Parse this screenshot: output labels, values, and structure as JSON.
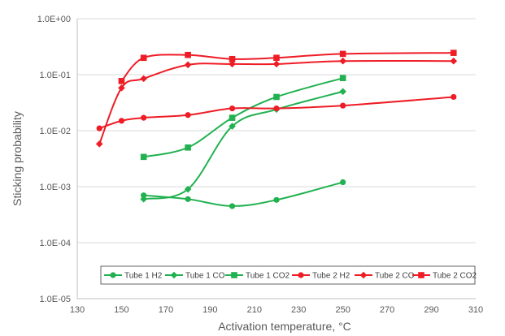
{
  "chart_data": {
    "type": "line",
    "xlabel": "Activation temperature, °C",
    "ylabel": "Sticking probability",
    "x_ticks": [
      "130",
      "150",
      "170",
      "190",
      "210",
      "230",
      "250",
      "270",
      "290",
      "310"
    ],
    "y_ticks": [
      "1.0E-05",
      "1.0E-04",
      "1.0E-03",
      "1.0E-02",
      "1.0E-01",
      "1.0E+00"
    ],
    "xlim": [
      130,
      310
    ],
    "ylim": [
      1e-05,
      1
    ],
    "y_scale": "log",
    "grid": "horizontal major gridlines",
    "legend_position": "bottom-inside",
    "series": [
      {
        "name": "Tube 1 H2",
        "color": "#21b150",
        "marker": "circle",
        "x": [
          160,
          180,
          200,
          220,
          250
        ],
        "y": [
          0.0007,
          0.0006,
          0.00045,
          0.00058,
          0.0012
        ]
      },
      {
        "name": "Tube 1 CO",
        "color": "#21b150",
        "marker": "diamond",
        "x": [
          160,
          180,
          200,
          220,
          250
        ],
        "y": [
          0.0006,
          0.0009,
          0.012,
          0.024,
          0.05
        ]
      },
      {
        "name": "Tube 1 CO2",
        "color": "#21b150",
        "marker": "square",
        "x": [
          160,
          180,
          200,
          220,
          250
        ],
        "y": [
          0.0034,
          0.005,
          0.017,
          0.04,
          0.087
        ]
      },
      {
        "name": "Tube 2 H2",
        "color": "#ee1c25",
        "marker": "circle",
        "x": [
          140,
          150,
          160,
          180,
          200,
          220,
          250,
          300
        ],
        "y": [
          0.011,
          0.015,
          0.017,
          0.019,
          0.025,
          0.025,
          0.028,
          0.04
        ]
      },
      {
        "name": "Tube 2 CO",
        "color": "#ee1c25",
        "marker": "diamond",
        "x": [
          140,
          150,
          160,
          180,
          200,
          220,
          250,
          300
        ],
        "y": [
          0.0058,
          0.058,
          0.085,
          0.15,
          0.155,
          0.155,
          0.175,
          0.175
        ]
      },
      {
        "name": "Tube 2 CO2",
        "color": "#ee1c25",
        "marker": "square",
        "x": [
          150,
          160,
          180,
          200,
          220,
          250,
          300
        ],
        "y": [
          0.077,
          0.2,
          0.225,
          0.19,
          0.2,
          0.235,
          0.245
        ]
      }
    ]
  }
}
